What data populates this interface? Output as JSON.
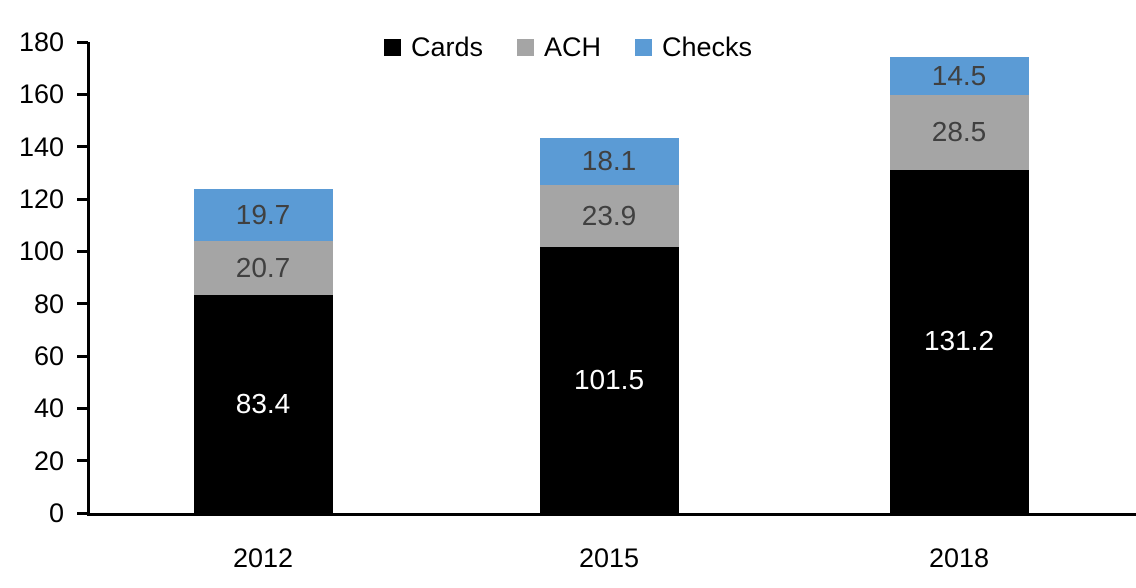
{
  "chart_data": {
    "type": "bar",
    "stacked": true,
    "title": "",
    "categories": [
      "2012",
      "2015",
      "2018"
    ],
    "series": [
      {
        "name": "Cards",
        "values": [
          83.4,
          101.5,
          131.2
        ],
        "color": "#000000",
        "label_color": "#ffffff"
      },
      {
        "name": "ACH",
        "values": [
          20.7,
          23.9,
          28.5
        ],
        "color": "#a5a5a5",
        "label_color": "#404040"
      },
      {
        "name": "Checks",
        "values": [
          19.7,
          18.1,
          14.5
        ],
        "color": "#5b9bd5",
        "label_color": "#404040"
      }
    ],
    "totals": [
      123.8,
      143.5,
      174.2
    ],
    "ylim": [
      0,
      180
    ],
    "ytick_interval": 20,
    "y_tick_labels": [
      "0",
      "20",
      "40",
      "60",
      "80",
      "100",
      "120",
      "140",
      "160",
      "180"
    ],
    "legend_position": "top-center",
    "grid": false,
    "data_labels": true,
    "axis_color": "#000000"
  }
}
